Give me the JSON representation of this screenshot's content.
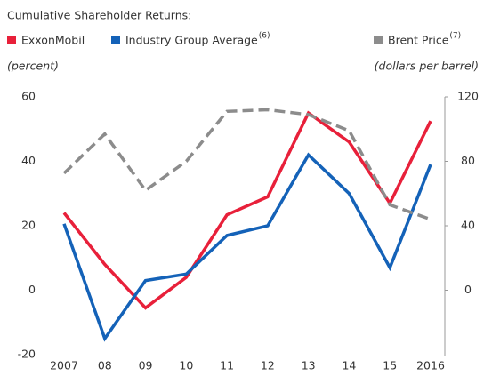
{
  "chart_data": {
    "type": "line",
    "title": "Cumulative Shareholder Returns:",
    "ylabel": "(percent)",
    "y2label": "(dollars per barrel)",
    "categories": [
      "2007",
      "08",
      "09",
      "10",
      "11",
      "12",
      "13",
      "14",
      "15",
      "2016"
    ],
    "series": [
      {
        "name": "ExxonMobil",
        "color": "#e8203a",
        "values": [
          24,
          8,
          -5.5,
          4,
          23.4,
          29,
          55,
          46,
          27,
          52.5
        ]
      },
      {
        "name": "Industry Group Average",
        "note": "(6)",
        "color": "#1462b8",
        "values": [
          20.6,
          -15,
          3,
          5,
          17,
          20,
          42,
          30,
          7,
          39
        ]
      },
      {
        "name": "Brent Price",
        "note": "(7)",
        "color": "#8c8c8c",
        "dashed": true,
        "axis": "y2",
        "values": [
          72.6,
          97,
          62,
          80,
          111,
          112,
          109,
          99,
          53,
          44
        ]
      }
    ],
    "ylim": [
      -20,
      60
    ],
    "yticks": [
      -20,
      0,
      20,
      40,
      60
    ],
    "y2lim": [
      -40,
      120
    ],
    "y2ticks": [
      0,
      40,
      80,
      120
    ],
    "grid": false
  }
}
